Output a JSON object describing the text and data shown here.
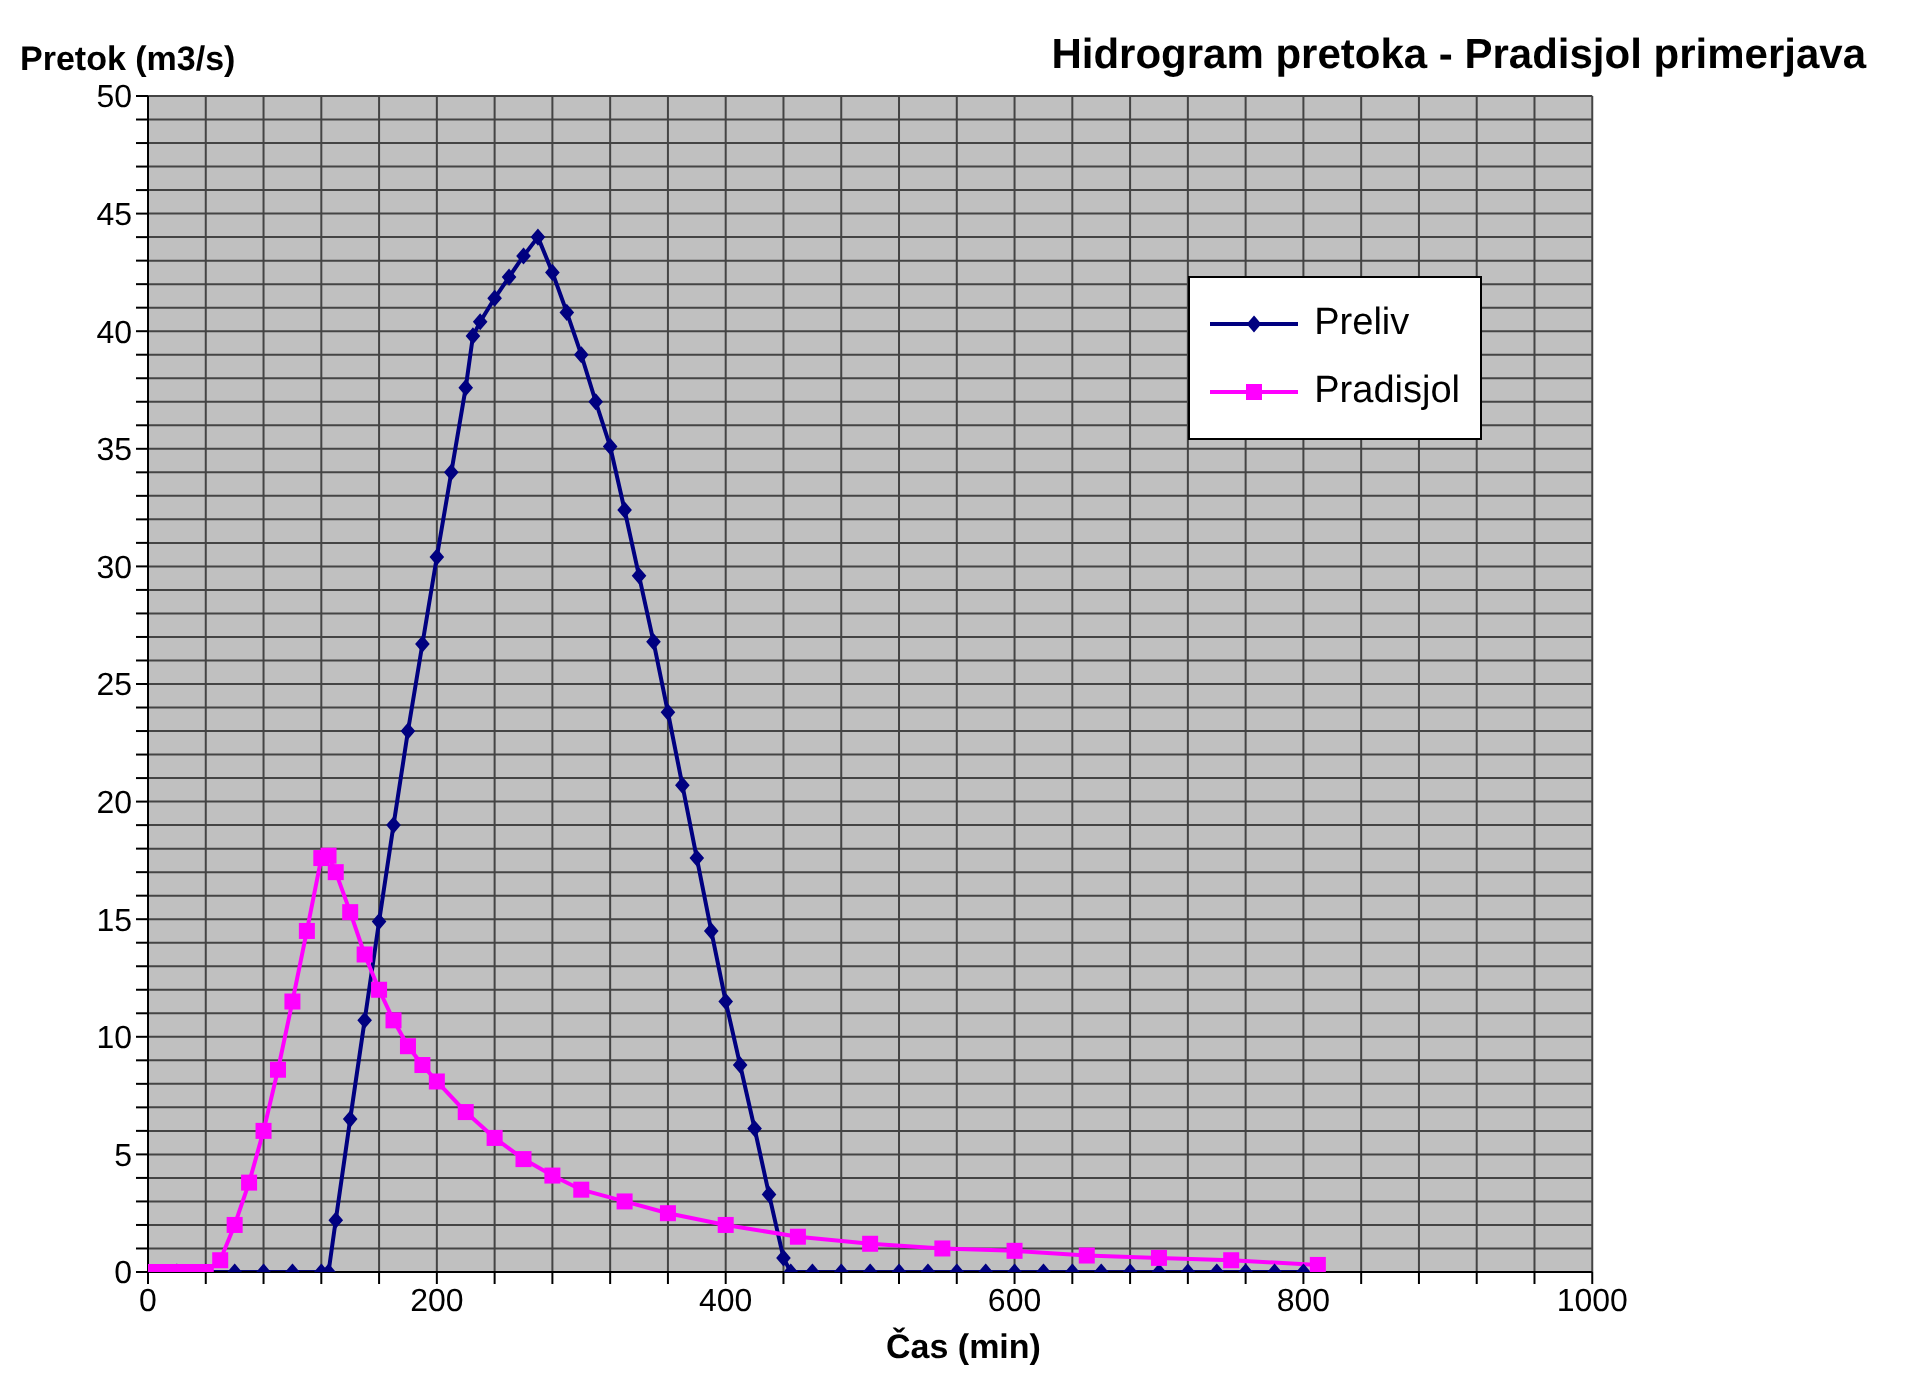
{
  "chart_data": {
    "type": "line",
    "title": "Hidrogram pretoka - Pradisjol primerjava",
    "xlabel": "Čas (min)",
    "ylabel": "Pretok (m3/s)",
    "xlim": [
      0,
      1000
    ],
    "ylim": [
      0,
      50
    ],
    "xticks": [
      0,
      {
        "value": 40,
        "label": null
      },
      {
        "value": 80,
        "label": null
      },
      {
        "value": 120,
        "label": null
      },
      {
        "value": 160,
        "label": null
      },
      200,
      {
        "value": 240,
        "label": null
      },
      {
        "value": 280,
        "label": null
      },
      {
        "value": 320,
        "label": null
      },
      {
        "value": 360,
        "label": null
      },
      400,
      {
        "value": 440,
        "label": null
      },
      {
        "value": 480,
        "label": null
      },
      {
        "value": 520,
        "label": null
      },
      {
        "value": 560,
        "label": null
      },
      600,
      {
        "value": 640,
        "label": null
      },
      {
        "value": 680,
        "label": null
      },
      {
        "value": 720,
        "label": null
      },
      {
        "value": 760,
        "label": null
      },
      800,
      {
        "value": 840,
        "label": null
      },
      {
        "value": 880,
        "label": null
      },
      {
        "value": 920,
        "label": null
      },
      {
        "value": 960,
        "label": null
      },
      1000
    ],
    "yticks": [
      0,
      {
        "value": 1,
        "label": null
      },
      {
        "value": 2,
        "label": null
      },
      {
        "value": 3,
        "label": null
      },
      {
        "value": 4,
        "label": null
      },
      5,
      {
        "value": 6,
        "label": null
      },
      {
        "value": 7,
        "label": null
      },
      {
        "value": 8,
        "label": null
      },
      {
        "value": 9,
        "label": null
      },
      10,
      {
        "value": 11,
        "label": null
      },
      {
        "value": 12,
        "label": null
      },
      {
        "value": 13,
        "label": null
      },
      {
        "value": 14,
        "label": null
      },
      15,
      {
        "value": 16,
        "label": null
      },
      {
        "value": 17,
        "label": null
      },
      {
        "value": 18,
        "label": null
      },
      {
        "value": 19,
        "label": null
      },
      20,
      {
        "value": 21,
        "label": null
      },
      {
        "value": 22,
        "label": null
      },
      {
        "value": 23,
        "label": null
      },
      {
        "value": 24,
        "label": null
      },
      25,
      {
        "value": 26,
        "label": null
      },
      {
        "value": 27,
        "label": null
      },
      {
        "value": 28,
        "label": null
      },
      {
        "value": 29,
        "label": null
      },
      30,
      {
        "value": 31,
        "label": null
      },
      {
        "value": 32,
        "label": null
      },
      {
        "value": 33,
        "label": null
      },
      {
        "value": 34,
        "label": null
      },
      35,
      {
        "value": 36,
        "label": null
      },
      {
        "value": 37,
        "label": null
      },
      {
        "value": 38,
        "label": null
      },
      {
        "value": 39,
        "label": null
      },
      40,
      {
        "value": 41,
        "label": null
      },
      {
        "value": 42,
        "label": null
      },
      {
        "value": 43,
        "label": null
      },
      {
        "value": 44,
        "label": null
      },
      45,
      {
        "value": 46,
        "label": null
      },
      {
        "value": 47,
        "label": null
      },
      {
        "value": 48,
        "label": null
      },
      {
        "value": 49,
        "label": null
      },
      50
    ],
    "grid": true,
    "legend": "right",
    "line_style": "solid",
    "series": [
      {
        "name": "Preliv",
        "color": "#000080",
        "marker": "diamond",
        "x": [
          0,
          20,
          40,
          60,
          80,
          100,
          120,
          125,
          130,
          140,
          150,
          160,
          170,
          180,
          190,
          200,
          210,
          220,
          225,
          230,
          240,
          250,
          260,
          270,
          280,
          290,
          300,
          310,
          320,
          330,
          340,
          350,
          360,
          370,
          380,
          390,
          400,
          410,
          420,
          430,
          440,
          445,
          460,
          480,
          500,
          520,
          540,
          560,
          580,
          600,
          620,
          640,
          660,
          680,
          700,
          720,
          740,
          760,
          780,
          800
        ],
        "values": [
          0,
          0,
          0,
          0,
          0,
          0,
          0,
          0,
          2.2,
          6.5,
          10.7,
          14.9,
          19.0,
          23.0,
          26.7,
          30.4,
          34.0,
          37.6,
          39.8,
          40.4,
          41.4,
          42.3,
          43.2,
          44.0,
          42.5,
          40.8,
          39.0,
          37.0,
          35.1,
          32.4,
          29.6,
          26.8,
          23.8,
          20.7,
          17.6,
          14.5,
          11.5,
          8.8,
          6.1,
          3.3,
          0.6,
          0,
          0,
          0,
          0,
          0,
          0,
          0,
          0,
          0,
          0,
          0,
          0,
          0,
          0,
          0,
          0,
          0,
          0,
          0
        ]
      },
      {
        "name": "Pradisjol",
        "color": "#ff00ff",
        "marker": "square",
        "x": [
          0,
          10,
          20,
          30,
          40,
          50,
          60,
          70,
          80,
          90,
          100,
          110,
          120,
          125,
          130,
          140,
          150,
          160,
          170,
          180,
          190,
          200,
          220,
          240,
          260,
          280,
          300,
          330,
          360,
          400,
          450,
          500,
          550,
          600,
          650,
          700,
          750,
          810
        ],
        "values": [
          0,
          0,
          0,
          0,
          0,
          0.5,
          2.0,
          3.8,
          6.0,
          8.6,
          11.5,
          14.5,
          17.6,
          17.7,
          17.0,
          15.3,
          13.5,
          12.0,
          10.7,
          9.6,
          8.8,
          8.1,
          6.8,
          5.7,
          4.8,
          4.1,
          3.5,
          3.0,
          2.5,
          2.0,
          1.5,
          1.2,
          1.0,
          0.9,
          0.7,
          0.6,
          0.5,
          0.3
        ]
      }
    ]
  }
}
